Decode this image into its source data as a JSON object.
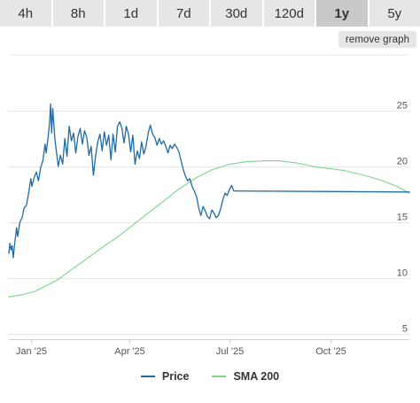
{
  "tabs": [
    {
      "label": "4h",
      "active": false
    },
    {
      "label": "8h",
      "active": false
    },
    {
      "label": "1d",
      "active": false
    },
    {
      "label": "7d",
      "active": false
    },
    {
      "label": "30d",
      "active": false
    },
    {
      "label": "120d",
      "active": false
    },
    {
      "label": "1y",
      "active": true
    },
    {
      "label": "5y",
      "active": false
    }
  ],
  "remove_graph_label": "remove graph",
  "colors": {
    "price": "#1f6aa5",
    "sma": "#7cd48d",
    "grid": "#e6e6e6",
    "axis": "#cfcfcf"
  },
  "chart_data": {
    "type": "line",
    "title": "",
    "xlabel": "",
    "ylabel": "",
    "x_ticks": [
      "Jan '25",
      "Apr '25",
      "Jul '25",
      "Oct '25"
    ],
    "x_tick_dates": [
      "2025-01-01",
      "2025-04-01",
      "2025-07-01",
      "2025-10-01"
    ],
    "xlim": [
      "2024-12-12",
      "2025-12-12"
    ],
    "y_ticks": [
      5,
      10,
      15,
      20,
      25
    ],
    "ylim": [
      4.5,
      30
    ],
    "grid": "horizontal",
    "y_axis_side": "right",
    "legend_position": "bottom-center",
    "series": [
      {
        "name": "Price",
        "points": [
          [
            "2024-12-12",
            12.2
          ],
          [
            "2024-12-13",
            13.1
          ],
          [
            "2024-12-14",
            12.5
          ],
          [
            "2024-12-15",
            12.9
          ],
          [
            "2024-12-16",
            11.8
          ],
          [
            "2024-12-17",
            12.8
          ],
          [
            "2024-12-19",
            14.5
          ],
          [
            "2024-12-20",
            13.7
          ],
          [
            "2024-12-22",
            15.0
          ],
          [
            "2024-12-24",
            15.4
          ],
          [
            "2024-12-26",
            16.3
          ],
          [
            "2024-12-28",
            16.5
          ],
          [
            "2024-12-30",
            17.6
          ],
          [
            "2025-01-01",
            18.9
          ],
          [
            "2025-01-02",
            18.2
          ],
          [
            "2025-01-04",
            19.0
          ],
          [
            "2025-01-06",
            19.5
          ],
          [
            "2025-01-08",
            18.7
          ],
          [
            "2025-01-10",
            19.9
          ],
          [
            "2025-01-12",
            20.5
          ],
          [
            "2025-01-14",
            22.0
          ],
          [
            "2025-01-15",
            21.2
          ],
          [
            "2025-01-17",
            22.8
          ],
          [
            "2025-01-18",
            23.8
          ],
          [
            "2025-01-19",
            25.6
          ],
          [
            "2025-01-20",
            23.0
          ],
          [
            "2025-01-21",
            25.2
          ],
          [
            "2025-01-23",
            22.4
          ],
          [
            "2025-01-25",
            20.8
          ],
          [
            "2025-01-26",
            20.0
          ],
          [
            "2025-01-28",
            21.0
          ],
          [
            "2025-01-30",
            20.2
          ],
          [
            "2025-02-01",
            22.5
          ],
          [
            "2025-02-03",
            20.9
          ],
          [
            "2025-02-05",
            23.6
          ],
          [
            "2025-02-07",
            22.3
          ],
          [
            "2025-02-09",
            23.0
          ],
          [
            "2025-02-11",
            21.2
          ],
          [
            "2025-02-13",
            22.7
          ],
          [
            "2025-02-15",
            23.4
          ],
          [
            "2025-02-17",
            22.0
          ],
          [
            "2025-02-19",
            23.2
          ],
          [
            "2025-02-21",
            22.6
          ],
          [
            "2025-02-23",
            21.0
          ],
          [
            "2025-02-25",
            21.8
          ],
          [
            "2025-02-27",
            19.2
          ],
          [
            "2025-03-01",
            20.9
          ],
          [
            "2025-03-03",
            22.2
          ],
          [
            "2025-03-05",
            22.9
          ],
          [
            "2025-03-07",
            21.4
          ],
          [
            "2025-03-09",
            23.1
          ],
          [
            "2025-03-11",
            21.9
          ],
          [
            "2025-03-13",
            22.8
          ],
          [
            "2025-03-15",
            20.6
          ],
          [
            "2025-03-17",
            22.9
          ],
          [
            "2025-03-19",
            21.3
          ],
          [
            "2025-03-21",
            23.6
          ],
          [
            "2025-03-23",
            24.0
          ],
          [
            "2025-03-25",
            23.4
          ],
          [
            "2025-03-27",
            22.1
          ],
          [
            "2025-03-29",
            23.6
          ],
          [
            "2025-03-31",
            22.9
          ],
          [
            "2025-04-02",
            21.3
          ],
          [
            "2025-04-04",
            22.8
          ],
          [
            "2025-04-06",
            20.2
          ],
          [
            "2025-04-08",
            21.4
          ],
          [
            "2025-04-10",
            20.7
          ],
          [
            "2025-04-12",
            22.2
          ],
          [
            "2025-04-14",
            21.1
          ],
          [
            "2025-04-16",
            21.8
          ],
          [
            "2025-04-18",
            23.0
          ],
          [
            "2025-04-20",
            23.7
          ],
          [
            "2025-04-22",
            22.9
          ],
          [
            "2025-04-24",
            22.6
          ],
          [
            "2025-04-26",
            21.9
          ],
          [
            "2025-04-28",
            22.5
          ],
          [
            "2025-04-30",
            22.0
          ],
          [
            "2025-05-02",
            22.3
          ],
          [
            "2025-05-04",
            21.8
          ],
          [
            "2025-05-06",
            21.2
          ],
          [
            "2025-05-08",
            21.9
          ],
          [
            "2025-05-10",
            21.6
          ],
          [
            "2025-05-12",
            22.0
          ],
          [
            "2025-05-14",
            21.7
          ],
          [
            "2025-05-16",
            21.3
          ],
          [
            "2025-05-18",
            20.5
          ],
          [
            "2025-05-20",
            19.7
          ],
          [
            "2025-05-22",
            19.1
          ],
          [
            "2025-05-24",
            18.7
          ],
          [
            "2025-05-26",
            18.9
          ],
          [
            "2025-05-28",
            18.2
          ],
          [
            "2025-05-30",
            17.8
          ],
          [
            "2025-06-01",
            17.3
          ],
          [
            "2025-06-03",
            16.3
          ],
          [
            "2025-06-05",
            15.6
          ],
          [
            "2025-06-07",
            16.4
          ],
          [
            "2025-06-09",
            16.0
          ],
          [
            "2025-06-11",
            15.5
          ],
          [
            "2025-06-13",
            15.3
          ],
          [
            "2025-06-15",
            16.1
          ],
          [
            "2025-06-17",
            15.8
          ],
          [
            "2025-06-19",
            15.4
          ],
          [
            "2025-06-21",
            15.6
          ],
          [
            "2025-06-23",
            16.2
          ],
          [
            "2025-06-25",
            17.0
          ],
          [
            "2025-06-27",
            17.6
          ],
          [
            "2025-06-29",
            17.4
          ],
          [
            "2025-07-01",
            17.9
          ],
          [
            "2025-07-03",
            18.3
          ],
          [
            "2025-07-05",
            17.8
          ],
          [
            "2025-07-08",
            17.8
          ],
          [
            "2025-12-12",
            17.7
          ]
        ]
      },
      {
        "name": "SMA 200",
        "points": [
          [
            "2024-12-12",
            8.3
          ],
          [
            "2024-12-25",
            8.5
          ],
          [
            "2025-01-05",
            8.8
          ],
          [
            "2025-01-15",
            9.3
          ],
          [
            "2025-01-25",
            9.8
          ],
          [
            "2025-02-05",
            10.6
          ],
          [
            "2025-02-15",
            11.3
          ],
          [
            "2025-02-25",
            12.0
          ],
          [
            "2025-03-08",
            12.8
          ],
          [
            "2025-03-20",
            13.6
          ],
          [
            "2025-04-01",
            14.5
          ],
          [
            "2025-04-15",
            15.6
          ],
          [
            "2025-05-01",
            16.8
          ],
          [
            "2025-05-15",
            17.9
          ],
          [
            "2025-06-01",
            19.0
          ],
          [
            "2025-06-15",
            19.7
          ],
          [
            "2025-07-01",
            20.2
          ],
          [
            "2025-07-15",
            20.4
          ],
          [
            "2025-08-01",
            20.5
          ],
          [
            "2025-08-15",
            20.5
          ],
          [
            "2025-09-01",
            20.3
          ],
          [
            "2025-09-15",
            20.0
          ],
          [
            "2025-10-01",
            19.8
          ],
          [
            "2025-10-15",
            19.6
          ],
          [
            "2025-11-01",
            19.2
          ],
          [
            "2025-11-15",
            18.8
          ],
          [
            "2025-12-01",
            18.2
          ],
          [
            "2025-12-12",
            17.6
          ]
        ]
      }
    ]
  }
}
